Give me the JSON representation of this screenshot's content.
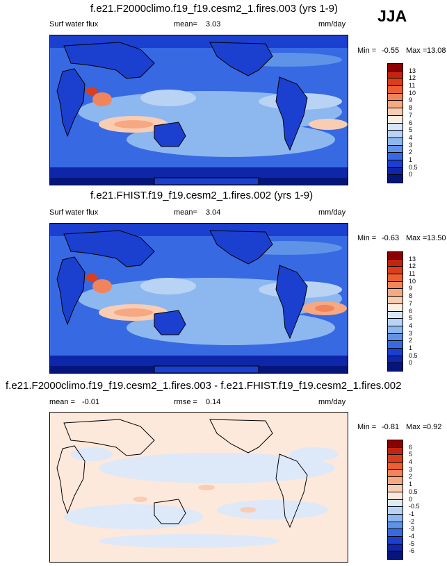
{
  "season": "JJA",
  "panels": [
    {
      "title": "f.e21.F2000climo.f19_f19.cesm2_1.fires.003 (yrs 1-9)",
      "var_label": "Surf water flux",
      "stat_label": "mean=",
      "stat_value": "3.03",
      "units": "mm/day",
      "min_label": "Min =",
      "min_value": "-0.55",
      "max_label": "Max =",
      "max_value": "13.08",
      "levels": [
        "13",
        "12",
        "11",
        "10",
        "9",
        "8",
        "7",
        "6",
        "5",
        "4",
        "3",
        "2",
        "1",
        "0.5",
        "0"
      ],
      "colors": [
        "#8b0000",
        "#c1240f",
        "#dc3d1c",
        "#ec5f33",
        "#f2845b",
        "#f6a882",
        "#f9cdb2",
        "#fdeee4",
        "#d7e6fb",
        "#b9d3f5",
        "#8db7ef",
        "#5e93e8",
        "#3769e3",
        "#1b3fcf",
        "#0e26a8",
        "#06157a"
      ]
    },
    {
      "title": "f.e21.FHIST.f19_f19.cesm2_1.fires.002 (yrs 1-9)",
      "var_label": "Surf water flux",
      "stat_label": "mean=",
      "stat_value": "3.04",
      "units": "mm/day",
      "min_label": "Min =",
      "min_value": "-0.63",
      "max_label": "Max =",
      "max_value": "13.50",
      "levels": [
        "13",
        "12",
        "11",
        "10",
        "9",
        "8",
        "7",
        "6",
        "5",
        "4",
        "3",
        "2",
        "1",
        "0.5",
        "0"
      ],
      "colors": [
        "#8b0000",
        "#c1240f",
        "#dc3d1c",
        "#ec5f33",
        "#f2845b",
        "#f6a882",
        "#f9cdb2",
        "#fdeee4",
        "#d7e6fb",
        "#b9d3f5",
        "#8db7ef",
        "#5e93e8",
        "#3769e3",
        "#1b3fcf",
        "#0e26a8",
        "#06157a"
      ]
    },
    {
      "title": "f.e21.F2000climo.f19_f19.cesm2_1.fires.003 - f.e21.FHIST.f19_f19.cesm2_1.fires.002",
      "stat_label": "mean =",
      "stat_value": "-0.01",
      "rmse_label": "rmse =",
      "rmse_value": "0.14",
      "units": "mm/day",
      "min_label": "Min =",
      "min_value": "-0.81",
      "max_label": "Max =",
      "max_value": "0.92",
      "levels": [
        "6",
        "5",
        "4",
        "3",
        "2",
        "1",
        "0.5",
        "0",
        "-0.5",
        "-1",
        "-2",
        "-3",
        "-4",
        "-5",
        "-6"
      ],
      "colors": [
        "#8b0000",
        "#c1240f",
        "#dc3d1c",
        "#ec5f33",
        "#f2845b",
        "#f6a882",
        "#f9cdb2",
        "#fde8dc",
        "#dde9f8",
        "#b9d3f5",
        "#8db7ef",
        "#5e93e8",
        "#3769e3",
        "#1b3fcf",
        "#0e26a8",
        "#06157a"
      ]
    }
  ],
  "chart_data": [
    {
      "type": "heatmap",
      "title": "f.e21.F2000climo.f19_f19.cesm2_1.fires.003 (yrs 1-9)",
      "variable": "Surf water flux",
      "units": "mm/day",
      "mean": 3.03,
      "min": -0.55,
      "max": 13.08,
      "contour_levels": [
        0,
        0.5,
        1,
        2,
        3,
        4,
        5,
        6,
        7,
        8,
        9,
        10,
        11,
        12,
        13
      ]
    },
    {
      "type": "heatmap",
      "title": "f.e21.FHIST.f19_f19.cesm2_1.fires.002 (yrs 1-9)",
      "variable": "Surf water flux",
      "units": "mm/day",
      "mean": 3.04,
      "min": -0.63,
      "max": 13.5,
      "contour_levels": [
        0,
        0.5,
        1,
        2,
        3,
        4,
        5,
        6,
        7,
        8,
        9,
        10,
        11,
        12,
        13
      ]
    },
    {
      "type": "heatmap",
      "title": "f.e21.F2000climo.f19_f19.cesm2_1.fires.003 - f.e21.FHIST.f19_f19.cesm2_1.fires.002",
      "units": "mm/day",
      "mean": -0.01,
      "rmse": 0.14,
      "min": -0.81,
      "max": 0.92,
      "contour_levels": [
        -6,
        -5,
        -4,
        -3,
        -2,
        -1,
        -0.5,
        0,
        0.5,
        1,
        2,
        3,
        4,
        5,
        6
      ]
    }
  ]
}
